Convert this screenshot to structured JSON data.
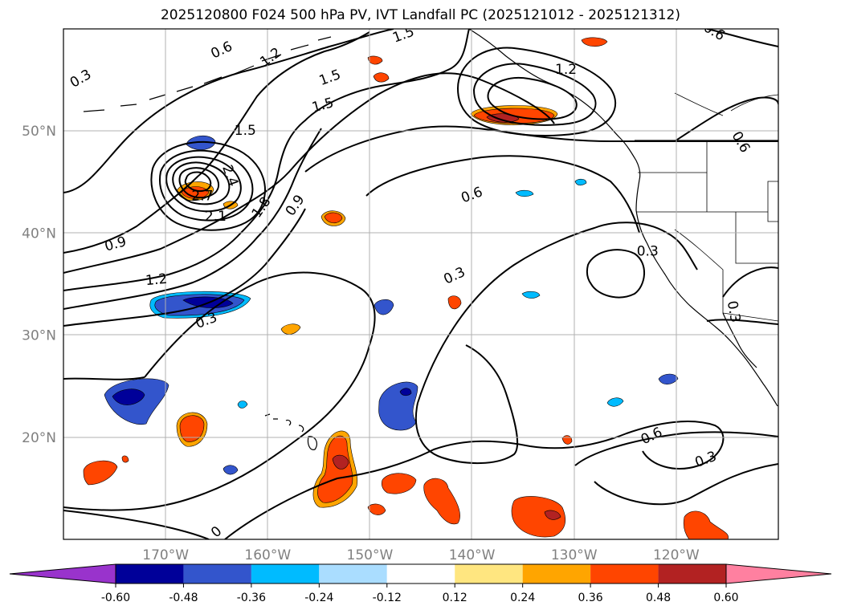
{
  "title": "2025120800 F024 500 hPa PV, IVT Landfall PC (2025121012 - 2025121312)",
  "map": {
    "lon_range": [
      -180,
      -110
    ],
    "lat_range": [
      10,
      60
    ],
    "lon_labels": [
      "170°W",
      "160°W",
      "150°W",
      "140°W",
      "130°W",
      "120°W"
    ],
    "lon_values": [
      -170,
      -160,
      -150,
      -140,
      -130,
      -120
    ],
    "lat_labels": [
      "20°N",
      "30°N",
      "40°N",
      "50°N"
    ],
    "lat_values": [
      20,
      30,
      40,
      50
    ]
  },
  "contour_labels": [
    {
      "text": "0.3",
      "lon": -178.3,
      "lat": 55.1,
      "rot": -30
    },
    {
      "text": "0.6",
      "lon": -164.5,
      "lat": 57.9,
      "rot": -25
    },
    {
      "text": "1.2",
      "lon": -159.7,
      "lat": 57.2,
      "rot": -35
    },
    {
      "text": "1.5",
      "lon": -153.9,
      "lat": 55.2,
      "rot": -20
    },
    {
      "text": "1.5",
      "lon": -146.7,
      "lat": 59.4,
      "rot": -20
    },
    {
      "text": "1.5",
      "lon": -154.6,
      "lat": 52.5,
      "rot": -15
    },
    {
      "text": "1.5",
      "lon": -162.2,
      "lat": 50.0,
      "rot": 0
    },
    {
      "text": "2.4",
      "lon": -163.7,
      "lat": 45.6,
      "rot": 70
    },
    {
      "text": "2.7",
      "lon": -166.4,
      "lat": 43.6,
      "rot": 0
    },
    {
      "text": "2.1",
      "lon": -165.1,
      "lat": 41.6,
      "rot": 0
    },
    {
      "text": "1.8",
      "lon": -160.6,
      "lat": 42.5,
      "rot": -55
    },
    {
      "text": "0.9",
      "lon": -157.3,
      "lat": 42.7,
      "rot": -55
    },
    {
      "text": "0.9",
      "lon": -174.9,
      "lat": 38.9,
      "rot": -15
    },
    {
      "text": "1.2",
      "lon": -170.9,
      "lat": 35.4,
      "rot": -5
    },
    {
      "text": "0.6",
      "lon": -140.0,
      "lat": 43.7,
      "rot": -20
    },
    {
      "text": "1.2",
      "lon": -130.8,
      "lat": 56.0,
      "rot": 0
    },
    {
      "text": "0.6",
      "lon": -116.3,
      "lat": 59.7,
      "rot": 30
    },
    {
      "text": "0.6",
      "lon": -113.7,
      "lat": 48.9,
      "rot": 60
    },
    {
      "text": "0.3",
      "lon": -166.0,
      "lat": 31.4,
      "rot": -20
    },
    {
      "text": "0.3",
      "lon": -141.7,
      "lat": 35.8,
      "rot": -25
    },
    {
      "text": "0.3",
      "lon": -122.8,
      "lat": 38.2,
      "rot": 0
    },
    {
      "text": "0.3",
      "lon": -114.4,
      "lat": 32.3,
      "rot": 80
    },
    {
      "text": "0.6",
      "lon": -122.4,
      "lat": 20.1,
      "rot": -25
    },
    {
      "text": "0.3",
      "lon": -117.1,
      "lat": 17.8,
      "rot": -20
    },
    {
      "text": "0",
      "lon": -165.0,
      "lat": 10.7,
      "rot": -40
    }
  ],
  "colorbar": {
    "ticks": [
      "-0.60",
      "-0.48",
      "-0.36",
      "-0.24",
      "-0.12",
      "0.12",
      "0.24",
      "0.36",
      "0.48",
      "0.60"
    ],
    "colors": [
      "#9933cc",
      "#000099",
      "#3355cc",
      "#00bbff",
      "#aaddff",
      "#ffffff",
      "#ffe680",
      "#ffa500",
      "#ff4500",
      "#b22222",
      "#ff80a0"
    ]
  }
}
